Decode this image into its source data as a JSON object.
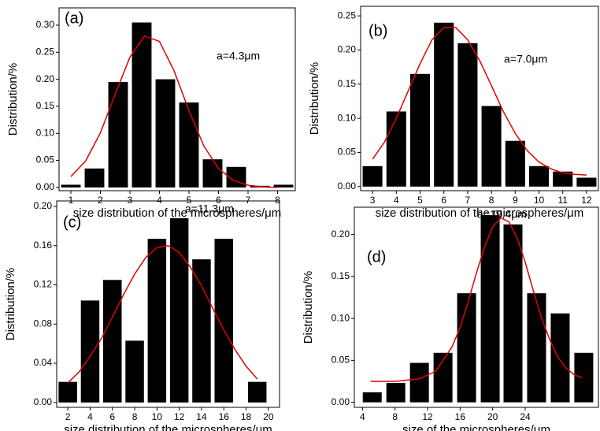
{
  "chart_data": [
    {
      "type": "bar",
      "label": "(a)",
      "annotation": "a=4.3μm",
      "x_label": "size distribution of the microspheres/μm",
      "y_label": "Distribution/%",
      "color": "#000000",
      "x": [
        1.0,
        1.8,
        2.6,
        3.4,
        4.2,
        5.0,
        5.8,
        6.6,
        7.4,
        8.2
      ],
      "values": [
        0.005,
        0.035,
        0.195,
        0.305,
        0.2,
        0.157,
        0.052,
        0.038,
        0.003,
        0.005
      ],
      "curve": {
        "color": "#e00000",
        "x": [
          1,
          1.5,
          2,
          2.5,
          3,
          3.5,
          4,
          4.5,
          5,
          5.5,
          6,
          6.5,
          7,
          7.5,
          8
        ],
        "values": [
          0.02,
          0.049,
          0.101,
          0.172,
          0.241,
          0.28,
          0.27,
          0.215,
          0.142,
          0.077,
          0.035,
          0.013,
          0.004,
          0.001,
          0.0
        ]
      },
      "xlim": [
        0.6,
        8.6
      ],
      "ylim": [
        -0.006,
        0.332
      ],
      "xticks": [
        1,
        2,
        3,
        4,
        5,
        6,
        7,
        8
      ],
      "yticks": [
        {
          "value": 0,
          "label": "0.00"
        },
        {
          "value": 0.05,
          "label": "0.05"
        },
        {
          "value": 0.1,
          "label": "0.10"
        },
        {
          "value": 0.15,
          "label": "0.15"
        },
        {
          "value": 0.2,
          "label": "0.20"
        },
        {
          "value": 0.25,
          "label": "0.25"
        },
        {
          "value": 0.3,
          "label": "0.30"
        }
      ]
    },
    {
      "type": "bar",
      "label": "(b)",
      "annotation": "a=7.0μm",
      "x_label": "size distribution of the microspheres/μm",
      "y_label": "Distribution/%",
      "color": "#000000",
      "x": [
        3,
        4,
        5,
        6,
        7,
        8,
        9,
        10,
        11,
        12
      ],
      "values": [
        0.03,
        0.11,
        0.165,
        0.24,
        0.21,
        0.118,
        0.067,
        0.03,
        0.022,
        0.013
      ],
      "curve": {
        "color": "#e00000",
        "x": [
          3,
          3.5,
          4,
          4.5,
          5,
          5.5,
          6,
          6.5,
          7,
          7.5,
          8,
          8.5,
          9,
          9.5,
          10,
          10.5,
          11,
          11.5,
          12
        ],
        "values": [
          0.04,
          0.065,
          0.1,
          0.14,
          0.18,
          0.215,
          0.233,
          0.233,
          0.215,
          0.185,
          0.148,
          0.11,
          0.078,
          0.053,
          0.036,
          0.026,
          0.02,
          0.018,
          0.017
        ]
      },
      "xlim": [
        2.5,
        12.5
      ],
      "ylim": [
        -0.006,
        0.264
      ],
      "xticks": [
        3,
        4,
        5,
        6,
        7,
        8,
        9,
        10,
        11,
        12
      ],
      "yticks": [
        {
          "value": 0,
          "label": "0.00"
        },
        {
          "value": 0.05,
          "label": "0.05"
        },
        {
          "value": 0.1,
          "label": "0.10"
        },
        {
          "value": 0.15,
          "label": "0.15"
        },
        {
          "value": 0.2,
          "label": "0.20"
        },
        {
          "value": 0.25,
          "label": "0.25"
        }
      ]
    },
    {
      "type": "bar",
      "label": "(c)",
      "annotation": "a=11.3μm",
      "x_label": "size distribution of the microspheres/μm",
      "y_label": "Distribution/%",
      "color": "#000000",
      "x": [
        2,
        4,
        6,
        8,
        10,
        12,
        14,
        16,
        19
      ],
      "values": [
        0.021,
        0.104,
        0.125,
        0.063,
        0.167,
        0.188,
        0.146,
        0.167,
        0.021
      ],
      "curve": {
        "color": "#e00000",
        "x": [
          2,
          3,
          4,
          5,
          6,
          7,
          8,
          9,
          10,
          11,
          12,
          13,
          14,
          15,
          16,
          17,
          18,
          19
        ],
        "values": [
          0.02,
          0.031,
          0.047,
          0.065,
          0.087,
          0.11,
          0.131,
          0.148,
          0.158,
          0.16,
          0.153,
          0.138,
          0.119,
          0.096,
          0.074,
          0.054,
          0.037,
          0.024
        ]
      },
      "xlim": [
        1,
        21
      ],
      "ylim": [
        -0.005,
        0.2056
      ],
      "xticks": [
        2,
        4,
        6,
        8,
        10,
        12,
        14,
        16,
        18,
        20
      ],
      "yticks": [
        {
          "value": 0,
          "label": "0.00"
        },
        {
          "value": 0.04,
          "label": "0.04"
        },
        {
          "value": 0.08,
          "label": "0.08"
        },
        {
          "value": 0.12,
          "label": "0.12"
        },
        {
          "value": 0.16,
          "label": "0.16"
        },
        {
          "value": 0.2,
          "label": "0.20"
        }
      ]
    },
    {
      "type": "bar",
      "label": "(d)",
      "annotation": "a=19.4μm",
      "x_label": "size of the microspheres/μm",
      "y_label": "Distribution/%",
      "color": "#000000",
      "x": [
        5.2,
        8.1,
        11.0,
        13.9,
        16.8,
        19.7,
        22.5,
        25.4,
        28.3,
        31.2
      ],
      "values": [
        0.012,
        0.023,
        0.047,
        0.059,
        0.13,
        0.223,
        0.212,
        0.13,
        0.106,
        0.059
      ],
      "curve": {
        "color": "#e00000",
        "x": [
          5,
          8,
          11,
          13,
          15,
          16,
          17,
          18,
          19,
          20,
          21,
          22,
          23,
          24,
          25,
          26,
          27,
          28,
          29,
          30,
          31
        ],
        "values": [
          0.025,
          0.025,
          0.028,
          0.037,
          0.066,
          0.089,
          0.12,
          0.154,
          0.185,
          0.209,
          0.22,
          0.215,
          0.196,
          0.167,
          0.133,
          0.101,
          0.075,
          0.054,
          0.041,
          0.033,
          0.029
        ]
      },
      "xlim": [
        3,
        33
      ],
      "ylim": [
        -0.006,
        0.2325
      ],
      "xticks": [
        4,
        8,
        12,
        16,
        20,
        24
      ],
      "yticks": [
        {
          "value": 0,
          "label": "0.00"
        },
        {
          "value": 0.05,
          "label": "0.05"
        },
        {
          "value": 0.1,
          "label": "0.10"
        },
        {
          "value": 0.15,
          "label": "0.15"
        },
        {
          "value": 0.2,
          "label": "0.20"
        }
      ]
    }
  ]
}
